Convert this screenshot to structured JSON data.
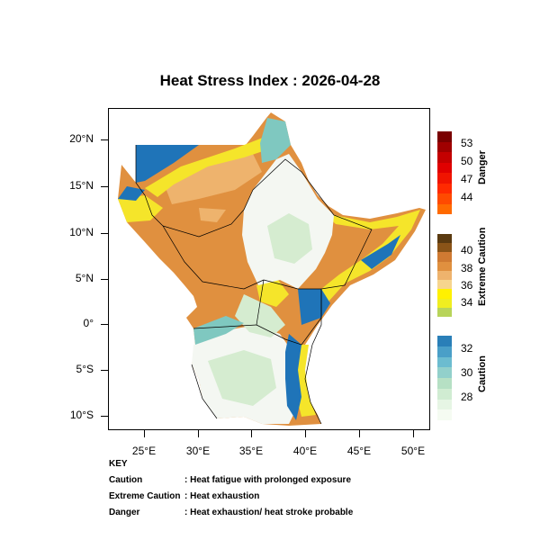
{
  "title": "Heat Stress Index : 2026-04-28",
  "lat_labels": [
    "20°N",
    "15°N",
    "10°N",
    "5°N",
    "0°",
    "5°S",
    "10°S"
  ],
  "lon_labels": [
    "25°E",
    "30°E",
    "35°E",
    "40°E",
    "45°E",
    "50°E"
  ],
  "map": {
    "lon_range": [
      21.5,
      51.5
    ],
    "lat_range": [
      -11.5,
      23.0
    ],
    "region_fills": {
      "orange_core": "#e0903f",
      "orange_light": "#eeb36d",
      "yellow": "#f5e52a",
      "cool_white": "#f4f7f2",
      "pale_green": "#d5ecd0",
      "teal": "#7fc8c0",
      "blue": "#1f74b8"
    },
    "border_color": "#000000"
  },
  "colorbars": {
    "danger": {
      "title": "Danger",
      "labels": [
        "53",
        "50",
        "47",
        "44"
      ],
      "colors": [
        "#7a0000",
        "#a00000",
        "#c40000",
        "#e00000",
        "#f01400",
        "#ff2a00",
        "#ff4a00",
        "#ff6a00"
      ]
    },
    "extreme": {
      "title": "Extreme Caution",
      "labels": [
        "40",
        "38",
        "36",
        "34"
      ],
      "colors": [
        "#5a3a10",
        "#8a5418",
        "#cf7a32",
        "#e0903f",
        "#eeb36d",
        "#f6d58e",
        "#fff100",
        "#f0ee20",
        "#b8d45a"
      ]
    },
    "caution": {
      "title": "Caution",
      "labels": [
        "32",
        "30",
        "28"
      ],
      "colors": [
        "#2a7fb8",
        "#4a9fc8",
        "#6cbcd0",
        "#92d0cb",
        "#b6e0c4",
        "#d0ecd2",
        "#e6f5e4",
        "#f5fbf2"
      ]
    }
  },
  "key": {
    "heading": "KEY",
    "items": [
      {
        "term": "Caution",
        "desc": ": Heat fatigue with prolonged exposure"
      },
      {
        "term": "Extreme Caution",
        "desc": ": Heat exhaustion"
      },
      {
        "term": "Danger",
        "desc": ": Heat exhaustion/ heat stroke probable"
      }
    ]
  }
}
